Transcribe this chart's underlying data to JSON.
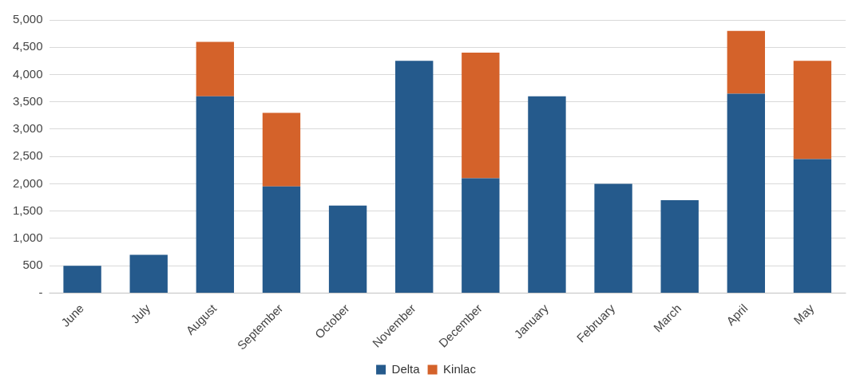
{
  "chart_data": {
    "type": "bar",
    "stacked": true,
    "categories": [
      "June",
      "July",
      "August",
      "September",
      "October",
      "November",
      "December",
      "January",
      "February",
      "March",
      "April",
      "May"
    ],
    "series": [
      {
        "name": "Delta",
        "color": "#255a8c",
        "values": [
          500,
          700,
          3600,
          1950,
          1600,
          4250,
          2100,
          3600,
          2000,
          1700,
          3650,
          2450
        ]
      },
      {
        "name": "Kinlac",
        "color": "#d4622a",
        "values": [
          null,
          null,
          1000,
          1350,
          null,
          null,
          2300,
          null,
          null,
          null,
          1150,
          1800
        ]
      }
    ],
    "ylim": [
      0,
      5000
    ],
    "yticks": [
      {
        "value": 0,
        "label": "-"
      },
      {
        "value": 500,
        "label": "500"
      },
      {
        "value": 1000,
        "label": "1,000"
      },
      {
        "value": 1500,
        "label": "1,500"
      },
      {
        "value": 2000,
        "label": "2,000"
      },
      {
        "value": 2500,
        "label": "2,500"
      },
      {
        "value": 3000,
        "label": "3,000"
      },
      {
        "value": 3500,
        "label": "3,500"
      },
      {
        "value": 4000,
        "label": "4,000"
      },
      {
        "value": 4500,
        "label": "4,500"
      },
      {
        "value": 5000,
        "label": "5,000"
      }
    ],
    "grid": "y",
    "legend": "bottom"
  }
}
